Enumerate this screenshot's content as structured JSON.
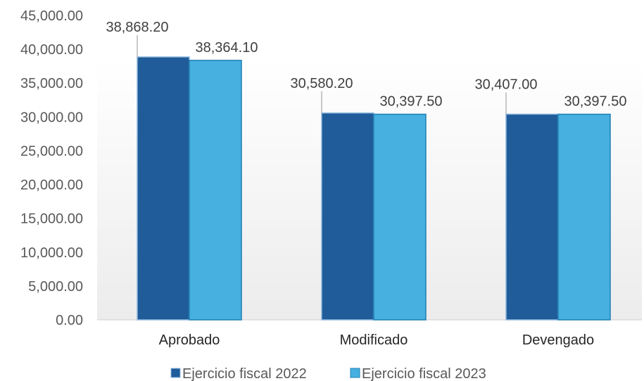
{
  "chart_data": {
    "type": "bar",
    "categories": [
      "Aprobado",
      "Modificado",
      "Devengado"
    ],
    "series": [
      {
        "name": "Ejercicio fiscal 2022",
        "values": [
          38868.2,
          30580.2,
          30407.0
        ],
        "value_labels": [
          "38,868.20",
          "30,580.20",
          "30,407.00"
        ],
        "color": "#1F5C99",
        "edge_color": "#8FB8DE"
      },
      {
        "name": "Ejercicio fiscal 2023",
        "values": [
          38364.1,
          30397.5,
          30397.5
        ],
        "value_labels": [
          "38,364.10",
          "30,397.50",
          "30,397.50"
        ],
        "color": "#47B0E0",
        "edge_color": "#1F7FB4"
      }
    ],
    "ylim": [
      0,
      45000
    ],
    "y_ticks": [
      0,
      5000,
      10000,
      15000,
      20000,
      25000,
      30000,
      35000,
      40000,
      45000
    ],
    "y_tick_labels": [
      "0.00",
      "5,000.00",
      "10,000.00",
      "15,000.00",
      "20,000.00",
      "25,000.00",
      "30,000.00",
      "35,000.00",
      "40,000.00",
      "45,000.00"
    ],
    "grid": false,
    "legend_position": "bottom",
    "plot_background": "gradient white to light gray",
    "title": "",
    "xlabel": "",
    "ylabel": ""
  }
}
